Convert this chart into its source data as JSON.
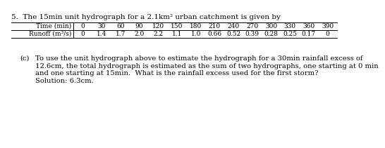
{
  "title": "5.  The 15min unit hydrograph for a 2.1km² urban catchment is given by",
  "time_header": "Time (min)",
  "runoff_header": "Runoff (m³/s)",
  "time_values": [
    "0",
    "30",
    "60",
    "90",
    "120",
    "150",
    "180",
    "210",
    "240",
    "270",
    "300",
    "330",
    "360",
    "390"
  ],
  "runoff_values": [
    "0",
    "1.4",
    "1.7",
    "2.0",
    "2.2",
    "1.1",
    "1.0",
    "0.66",
    "0.52",
    "0.39",
    "0.28",
    "0.25",
    "0.17",
    "0"
  ],
  "part_c_label": "(c)",
  "part_c_text1": "To use the unit hydrograph above to estimate the hydrograph for a 30min rainfall excess of",
  "part_c_text2": "12.6cm, the total hydrograph is estimated as the sum of two hydrographs, one starting at 0 min",
  "part_c_text3": "and one starting at 15min.  What is the rainfall excess used for the first storm?",
  "solution_text": "Solution: 6.3cm.",
  "bg_color": "#ffffff",
  "text_color": "#000000",
  "font_size_title": 7.5,
  "font_size_table": 6.5,
  "font_size_body": 7.2
}
